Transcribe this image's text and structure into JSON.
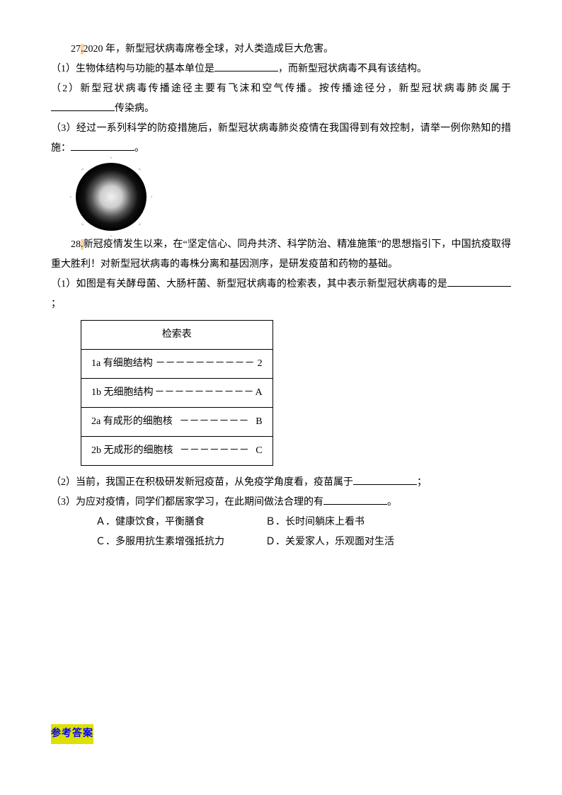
{
  "q27": {
    "num": "27",
    "dot": ".",
    "intro": "2020 年，新型冠状病毒席卷全球，对人类造成巨大危害。",
    "p1_a": "（1）生物体结构与功能的基本单位是",
    "p1_b": "，而新型冠状病毒不具有该结构。",
    "p2_a": "（2）新型冠状病毒传播途径主要有飞沫和空气传播。按传播途径分，新型冠状病毒肺炎属于",
    "p2_b": "传染病。",
    "p3_a": "（3）经过一系列科学的防疫措施后，新型冠状病毒肺炎疫情在我国得到有效控制，请举一例你熟知的措施：",
    "p3_b": "。"
  },
  "q28": {
    "num": "28",
    "dot": ".",
    "intro_a": "新冠疫情发生以来，在“坚定信心、同舟共济、科学防治、精准施策”的思想指引下，中国抗疫取得重大胜利！对新型冠状病毒的毒株分离和基因测序，是研发疫苗和药物的基础。",
    "p1_a": "（1）如图是有关酵母菌、大肠杆菌、新型冠状病毒的检索表，其中表示新型冠状病毒的是",
    "p1_b": "；",
    "table_title": "检索表",
    "rows": [
      {
        "left": "1a  有细胞结构",
        "dash": "－－－－－－－－－－",
        "right": "2"
      },
      {
        "left": "1b  无细胞结构",
        "dash": "－－－－－－－－－－",
        "right": "A"
      },
      {
        "left": "2a  有成形的细胞核",
        "dash": "－－－－－－－",
        "right": "B"
      },
      {
        "left": "2b  无成形的细胞核",
        "dash": "－－－－－－－",
        "right": "C"
      }
    ],
    "p2_a": "（2）当前，我国正在积极研发新冠疫苗，从免疫学角度看，疫苗属于",
    "p2_b": "；",
    "p3_a": "（3）为应对疫情，同学们都居家学习，在此期间做法合理的有",
    "p3_b": "。",
    "optA": "Ａ．健康饮食，平衡膳食",
    "optB": "Ｂ．长时间躺床上看书",
    "optC": "Ｃ．多服用抗生素增强抵抗力",
    "optD": "Ｄ．关爱家人，乐观面对生活"
  },
  "answer_title": "参考答案",
  "style": {
    "highlight_bg": "#fbd392",
    "answer_color": "#0000ff",
    "answer_bg": "#dfdf00"
  }
}
